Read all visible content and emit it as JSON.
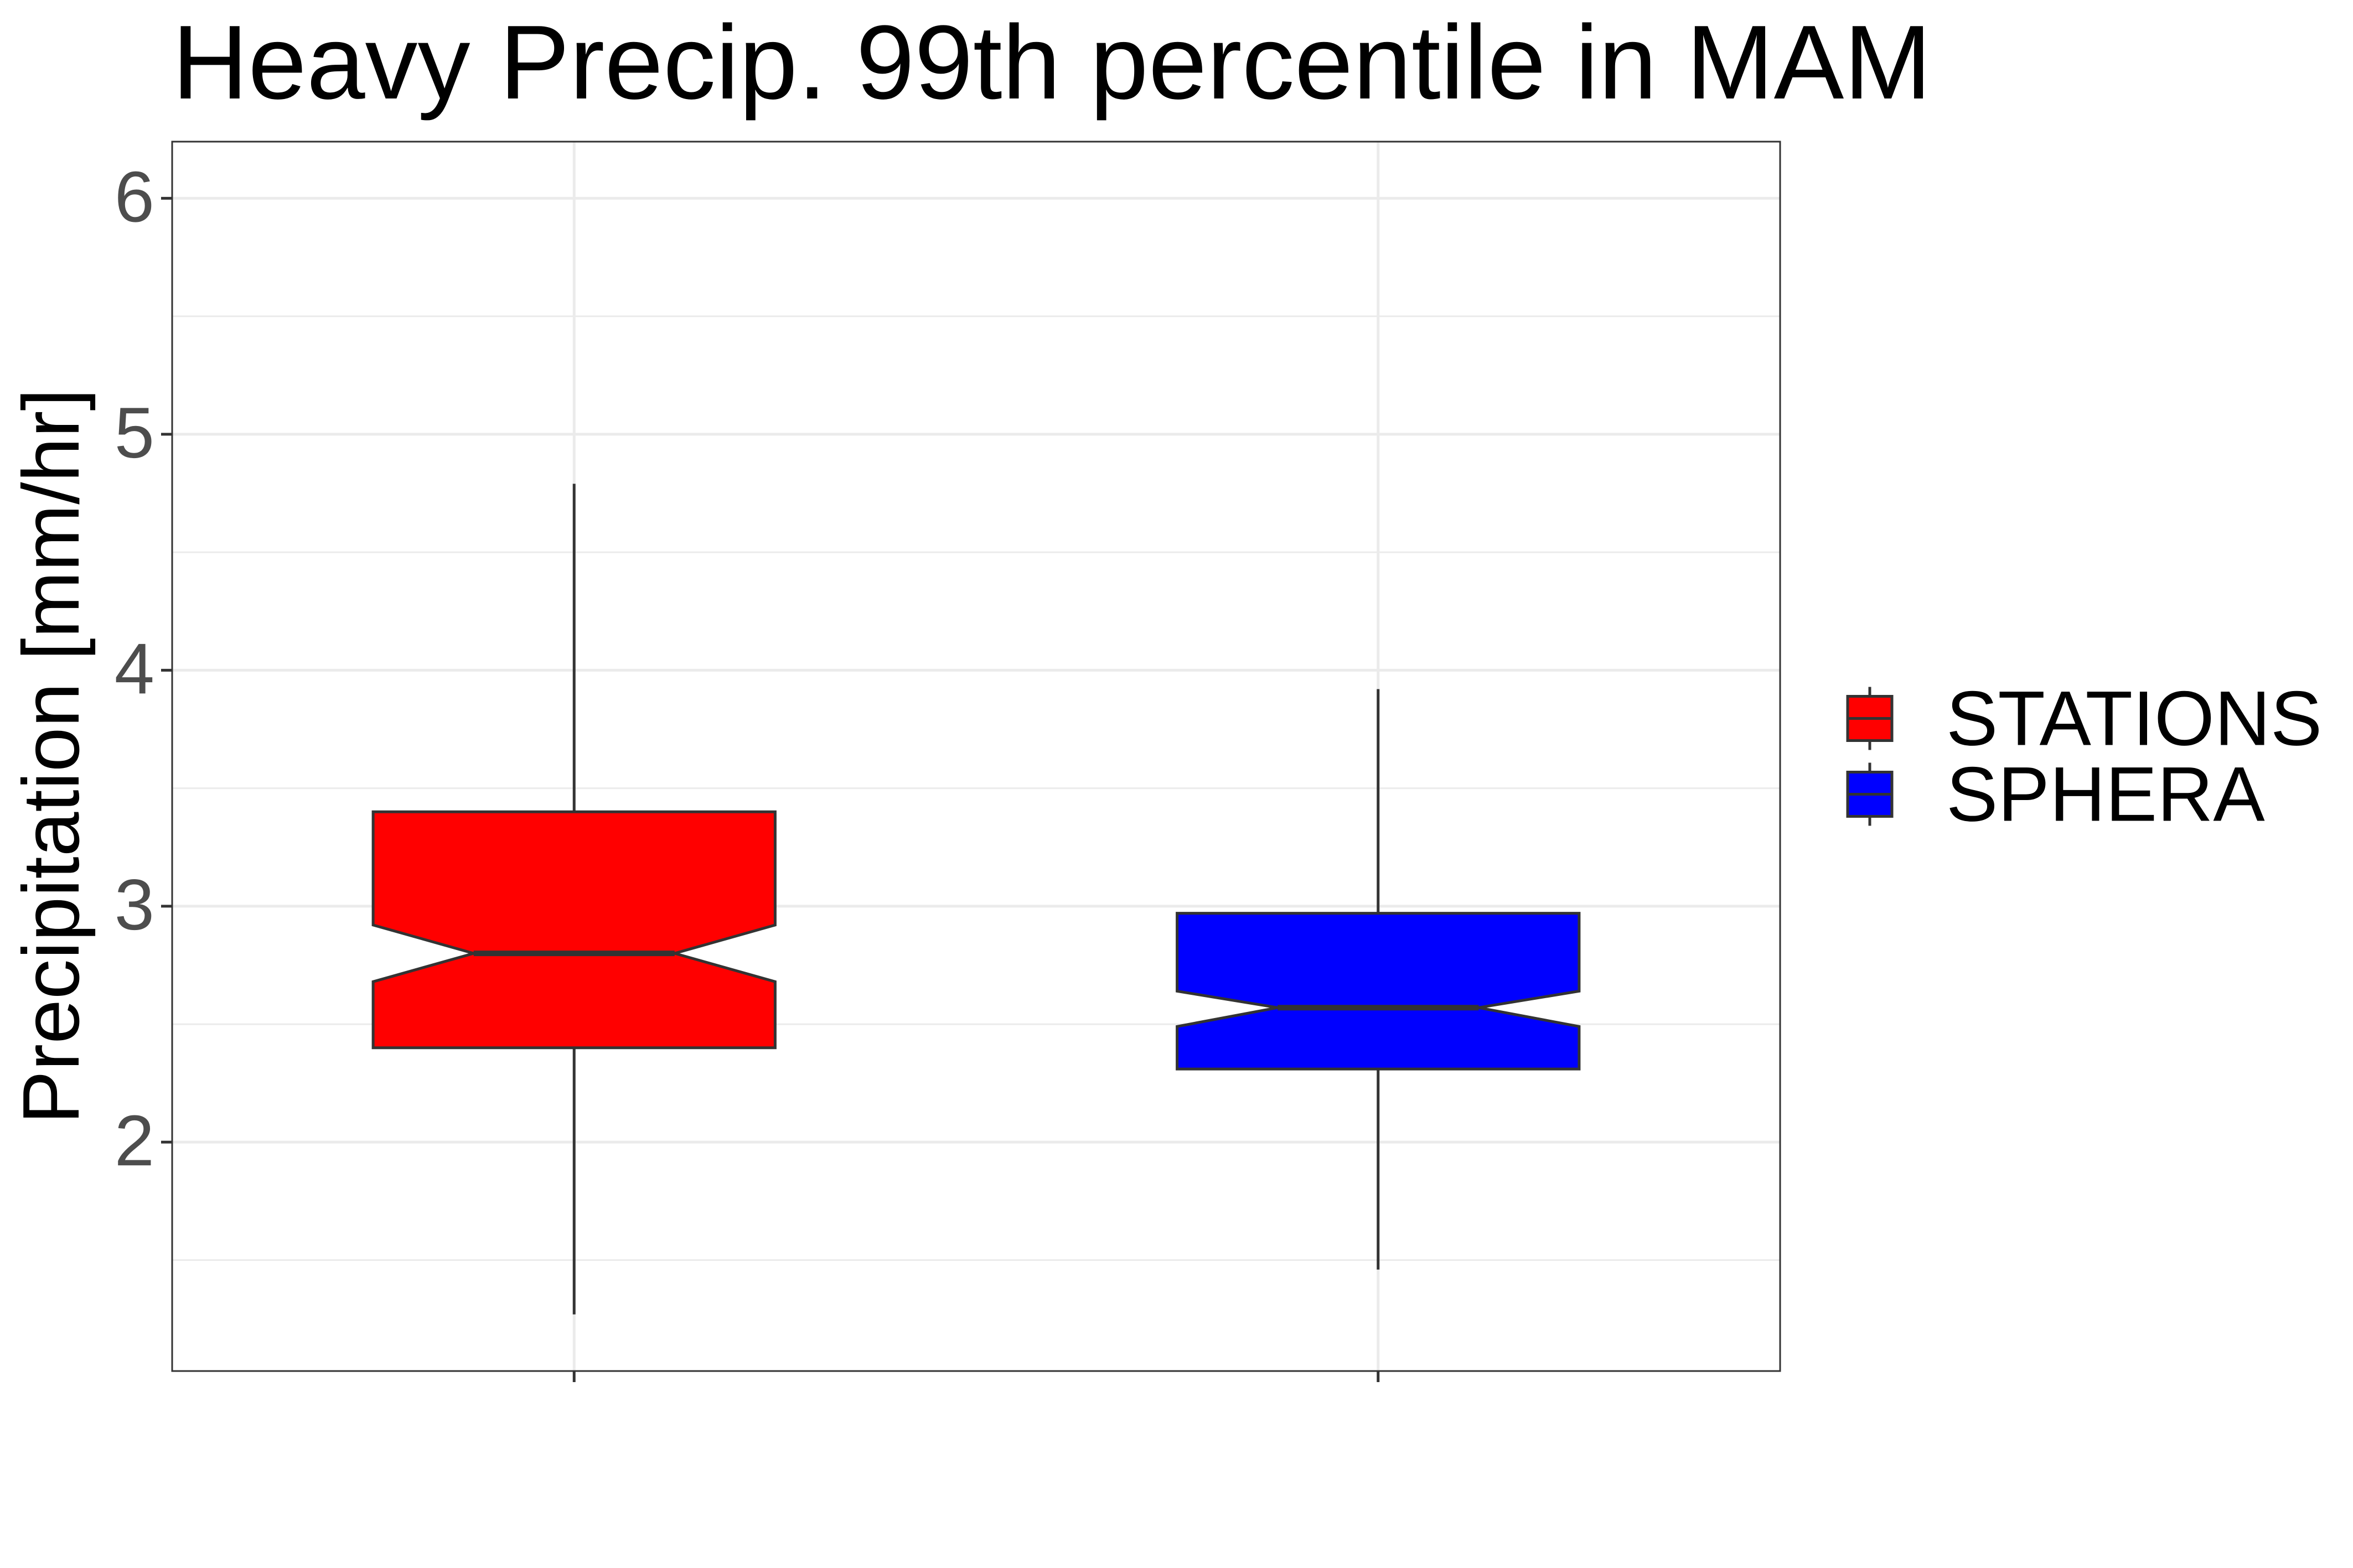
{
  "chart_data": {
    "type": "boxplot",
    "title": "Heavy Precip. 99th percentile in MAM",
    "xlabel": "",
    "ylabel": "Precipitation [mm/hr]",
    "ylim": [
      1.03,
      6.24
    ],
    "yticks": [
      2,
      3,
      4,
      5,
      6
    ],
    "grid": true,
    "notched": true,
    "legend_position": "right",
    "series": [
      {
        "name": "STATIONS",
        "color": "#ff0000",
        "whisker_low": 1.27,
        "q1": 2.4,
        "median": 2.8,
        "q3": 3.4,
        "whisker_high": 4.79,
        "notch_low": 2.68,
        "notch_high": 2.92
      },
      {
        "name": "SPHERA",
        "color": "#0000ff",
        "whisker_low": 1.46,
        "q1": 2.31,
        "median": 2.57,
        "q3": 2.97,
        "whisker_high": 3.92,
        "notch_low": 2.49,
        "notch_high": 2.64
      }
    ]
  }
}
